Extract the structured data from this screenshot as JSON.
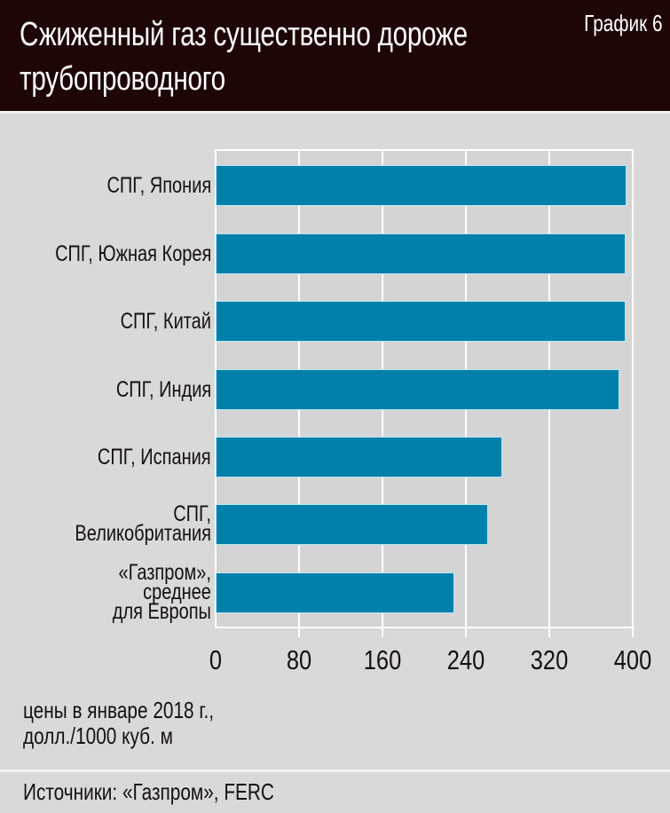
{
  "header": {
    "title": "Сжиженный газ существенно дороже трубопроводного",
    "title_line1": "Сжиженный газ существенно дороже",
    "title_line2": "трубопроводного",
    "chart_number": "График 6"
  },
  "colors": {
    "header_bg": "#1f0606",
    "page_bg": "#d9d9d9",
    "bar": "#0080ab",
    "grid": "#ffffff"
  },
  "units": {
    "line1": "цены в январе 2018 г.,",
    "line2": "долл./1000 куб. м"
  },
  "source": "Источники: «Газпром», FERC",
  "chart_data": {
    "type": "bar",
    "orientation": "horizontal",
    "title": "Сжиженный газ существенно дороже трубопроводного",
    "subtitle": "График 6",
    "xlabel": "цены в январе 2018 г., долл./1000 куб. м",
    "ylabel": "",
    "categories": [
      "СПГ, Япония",
      "СПГ, Южная Корея",
      "СПГ, Китай",
      "СПГ, Индия",
      "СПГ, Испания",
      "СПГ, Великобритания",
      "«Газпром», среднее для Европы"
    ],
    "category_lines": [
      [
        "СПГ, Япония"
      ],
      [
        "СПГ, Южная Корея"
      ],
      [
        "СПГ, Китай"
      ],
      [
        "СПГ, Индия"
      ],
      [
        "СПГ, Испания"
      ],
      [
        "СПГ,",
        "Великобритания"
      ],
      [
        "«Газпром»,",
        "среднее",
        "для Европы"
      ]
    ],
    "values": [
      393,
      392,
      392,
      386,
      274,
      260,
      228
    ],
    "xlim": [
      0,
      400
    ],
    "xticks": [
      "0",
      "80",
      "160",
      "240",
      "320",
      "400"
    ],
    "grid": true,
    "legend": null,
    "source": "Источники: «Газпром», FERC"
  }
}
